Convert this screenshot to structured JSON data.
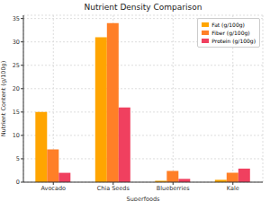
{
  "chart_data": {
    "type": "bar",
    "title": "Nutrient Density Comparison",
    "x_label": "Superfoods",
    "y_label": "Nutrient Content (g/100g)",
    "categories": [
      "Avocado",
      "Chia Seeds",
      "Blueberries",
      "Kale"
    ],
    "series": [
      {
        "name": "Fat (g/100g)",
        "color": "#ffa500",
        "values": [
          15,
          31,
          0.3,
          0.5
        ]
      },
      {
        "name": "Fiber (g/100g)",
        "color": "#ff7f27",
        "values": [
          7,
          34,
          2.4,
          2
        ]
      },
      {
        "name": "Protein (g/100g)",
        "color": "#f0405f",
        "values": [
          2,
          16,
          0.7,
          2.9
        ]
      }
    ],
    "ylim": [
      0,
      35.7
    ],
    "yticks": [
      0,
      5,
      10,
      15,
      20,
      25,
      30,
      35
    ],
    "grid": true,
    "legend": "upper right"
  }
}
